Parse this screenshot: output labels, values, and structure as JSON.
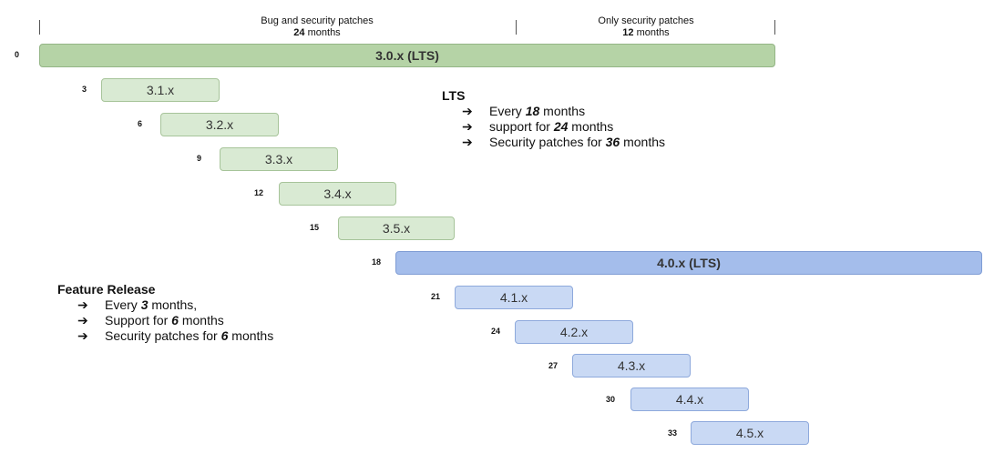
{
  "header": {
    "left": {
      "line1": "Bug and security patches",
      "num": "24",
      "unit": "months"
    },
    "right": {
      "line1": "Only security patches",
      "num": "12",
      "unit": "months"
    }
  },
  "releases": [
    {
      "month": "0",
      "label": "3.0.x (LTS)"
    },
    {
      "month": "3",
      "label": "3.1.x"
    },
    {
      "month": "6",
      "label": "3.2.x"
    },
    {
      "month": "9",
      "label": "3.3.x"
    },
    {
      "month": "12",
      "label": "3.4.x"
    },
    {
      "month": "15",
      "label": "3.5.x"
    },
    {
      "month": "18",
      "label": "4.0.x (LTS)"
    },
    {
      "month": "21",
      "label": "4.1.x"
    },
    {
      "month": "24",
      "label": "4.2.x"
    },
    {
      "month": "27",
      "label": "4.3.x"
    },
    {
      "month": "30",
      "label": "4.4.x"
    },
    {
      "month": "33",
      "label": "4.5.x"
    }
  ],
  "lts_info": {
    "title": "LTS",
    "arrow": "➔",
    "items": [
      {
        "pre": "Every ",
        "num": "18",
        "post": " months"
      },
      {
        "pre": "support for ",
        "num": "24",
        "post": " months"
      },
      {
        "pre": "Security patches for ",
        "num": "36",
        "post": " months"
      }
    ]
  },
  "feature_info": {
    "title": "Feature Release",
    "arrow": "➔",
    "items": [
      {
        "pre": "Every ",
        "num": "3",
        "post": " months,"
      },
      {
        "pre": "Support for ",
        "num": "6",
        "post": " months"
      },
      {
        "pre": "Security patches for ",
        "num": "6",
        "post": " months"
      }
    ]
  }
}
